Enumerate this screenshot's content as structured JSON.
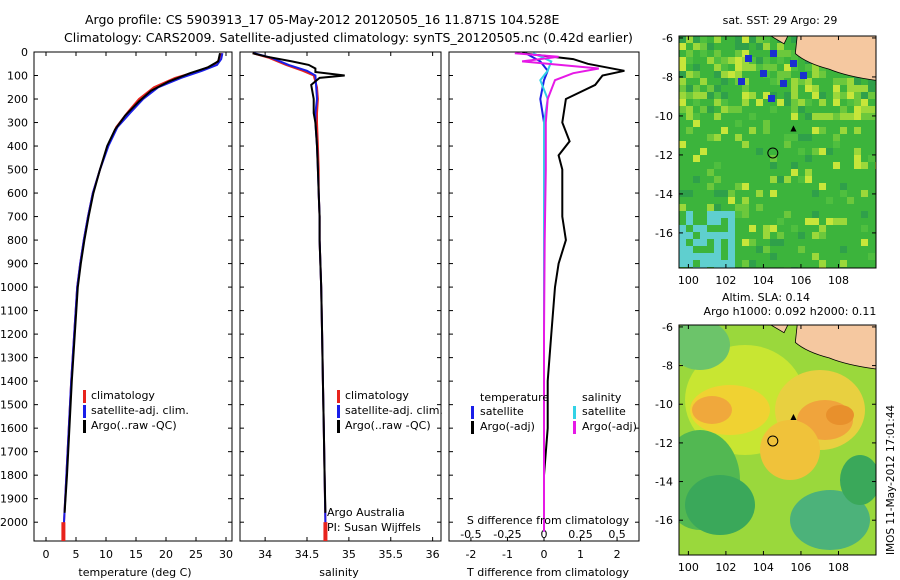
{
  "header": {
    "line1": "Argo profile: CS 5903913_17 05-May-2012 20120505_16 11.871S 104.528E",
    "line2": "Climatology: CARS2009. Satellite-adjusted climatology: synTS_20120505.nc (0.42d earlier)"
  },
  "side_label": "IMOS 11-May-2012 17:01:44",
  "chart_data": [
    {
      "id": "temperature",
      "type": "line",
      "xlabel": "temperature (deg C)",
      "ylabel": "",
      "xlim": [
        -2,
        31
      ],
      "ylim": [
        2080,
        0
      ],
      "xticks": [
        0,
        5,
        10,
        15,
        20,
        25,
        30
      ],
      "yticks": [
        0,
        100,
        200,
        300,
        400,
        500,
        600,
        700,
        800,
        900,
        1000,
        1100,
        1200,
        1300,
        1400,
        1500,
        1600,
        1700,
        1800,
        1900,
        2000
      ],
      "legend": [
        "climatology",
        "satellite-adj. clim.",
        "Argo(..raw -QC)"
      ],
      "series": [
        {
          "name": "climatology",
          "color": "#e8231c",
          "points": [
            [
              29.3,
              5
            ],
            [
              29.0,
              30
            ],
            [
              28.0,
              55
            ],
            [
              25.5,
              80
            ],
            [
              21.5,
              110
            ],
            [
              18.0,
              150
            ],
            [
              15.5,
              200
            ],
            [
              13.5,
              260
            ],
            [
              11.7,
              320
            ],
            [
              10.3,
              400
            ],
            [
              9.0,
              500
            ],
            [
              7.8,
              600
            ],
            [
              7.0,
              700
            ],
            [
              6.3,
              800
            ],
            [
              5.7,
              900
            ],
            [
              5.2,
              1000
            ],
            [
              4.7,
              1200
            ],
            [
              4.2,
              1400
            ],
            [
              3.8,
              1600
            ],
            [
              3.4,
              1800
            ],
            [
              3.0,
              2000
            ],
            [
              2.9,
              2040
            ]
          ]
        },
        {
          "name": "satellite-adj. clim.",
          "color": "#1a1ee8",
          "points": [
            [
              29.4,
              5
            ],
            [
              29.2,
              30
            ],
            [
              28.5,
              55
            ],
            [
              26.0,
              80
            ],
            [
              22.5,
              110
            ],
            [
              18.7,
              150
            ],
            [
              16.2,
              200
            ],
            [
              14.0,
              260
            ],
            [
              11.9,
              320
            ],
            [
              10.4,
              400
            ],
            [
              9.0,
              500
            ],
            [
              7.8,
              600
            ],
            [
              7.0,
              700
            ],
            [
              6.3,
              800
            ],
            [
              5.7,
              900
            ],
            [
              5.2,
              1000
            ],
            [
              4.7,
              1200
            ],
            [
              4.2,
              1400
            ],
            [
              3.8,
              1600
            ],
            [
              3.4,
              1800
            ],
            [
              3.0,
              2000
            ],
            [
              2.9,
              2040
            ]
          ]
        },
        {
          "name": "Argo(..raw -QC)",
          "color": "#000000",
          "points": [
            [
              29.0,
              5
            ],
            [
              28.7,
              40
            ],
            [
              27.0,
              65
            ],
            [
              24.0,
              90
            ],
            [
              20.5,
              125
            ],
            [
              17.5,
              165
            ],
            [
              15.5,
              210
            ],
            [
              13.2,
              270
            ],
            [
              11.5,
              330
            ],
            [
              10.2,
              400
            ],
            [
              9.0,
              500
            ],
            [
              7.9,
              600
            ],
            [
              7.1,
              700
            ],
            [
              6.4,
              800
            ],
            [
              5.8,
              900
            ],
            [
              5.3,
              1000
            ],
            [
              4.8,
              1200
            ],
            [
              4.3,
              1400
            ],
            [
              3.9,
              1600
            ],
            [
              3.5,
              1800
            ],
            [
              3.1,
              1960
            ]
          ]
        }
      ]
    },
    {
      "id": "salinity",
      "type": "line",
      "xlabel": "salinity",
      "ylabel": "",
      "xlim": [
        33.7,
        36.1
      ],
      "ylim": [
        2080,
        0
      ],
      "xticks": [
        34,
        34.5,
        35,
        35.5,
        36
      ],
      "xticklabels": [
        "34",
        "34.5",
        "35",
        "35.5",
        "36"
      ],
      "legend": [
        "climatology",
        "satellite-adj. clim.",
        "Argo(..raw -QC)"
      ],
      "notes": [
        "Argo Australia",
        "PI: Susan Wijffels"
      ],
      "series": [
        {
          "name": "climatology",
          "color": "#e8231c",
          "points": [
            [
              33.85,
              5
            ],
            [
              34.05,
              25
            ],
            [
              34.25,
              55
            ],
            [
              34.45,
              80
            ],
            [
              34.58,
              100
            ],
            [
              34.62,
              150
            ],
            [
              34.63,
              200
            ],
            [
              34.62,
              260
            ],
            [
              34.62,
              300
            ],
            [
              34.63,
              400
            ],
            [
              34.64,
              500
            ],
            [
              34.64,
              600
            ],
            [
              34.65,
              700
            ],
            [
              34.65,
              800
            ],
            [
              34.66,
              900
            ],
            [
              34.67,
              1000
            ],
            [
              34.68,
              1200
            ],
            [
              34.69,
              1400
            ],
            [
              34.7,
              1600
            ],
            [
              34.71,
              1800
            ],
            [
              34.72,
              2000
            ],
            [
              34.72,
              2040
            ]
          ]
        },
        {
          "name": "satellite-adj. clim.",
          "color": "#1a1ee8",
          "points": [
            [
              33.87,
              5
            ],
            [
              34.08,
              25
            ],
            [
              34.28,
              55
            ],
            [
              34.5,
              80
            ],
            [
              34.6,
              100
            ],
            [
              34.61,
              150
            ],
            [
              34.62,
              200
            ],
            [
              34.6,
              260
            ],
            [
              34.6,
              300
            ],
            [
              34.62,
              400
            ],
            [
              34.63,
              500
            ],
            [
              34.64,
              600
            ],
            [
              34.65,
              700
            ],
            [
              34.65,
              800
            ],
            [
              34.66,
              900
            ],
            [
              34.67,
              1000
            ],
            [
              34.68,
              1200
            ],
            [
              34.69,
              1400
            ],
            [
              34.7,
              1600
            ],
            [
              34.71,
              1800
            ],
            [
              34.72,
              2000
            ],
            [
              34.72,
              2040
            ]
          ]
        },
        {
          "name": "Argo(..raw -QC)",
          "color": "#000000",
          "points": [
            [
              33.85,
              5
            ],
            [
              34.02,
              20
            ],
            [
              34.32,
              40
            ],
            [
              34.52,
              55
            ],
            [
              34.6,
              70
            ],
            [
              34.6,
              85
            ],
            [
              34.95,
              100
            ],
            [
              34.65,
              110
            ],
            [
              34.55,
              140
            ],
            [
              34.58,
              200
            ],
            [
              34.58,
              260
            ],
            [
              34.6,
              300
            ],
            [
              34.62,
              400
            ],
            [
              34.63,
              500
            ],
            [
              34.64,
              600
            ],
            [
              34.65,
              700
            ],
            [
              34.65,
              800
            ],
            [
              34.66,
              900
            ],
            [
              34.67,
              1000
            ],
            [
              34.68,
              1200
            ],
            [
              34.69,
              1400
            ],
            [
              34.7,
              1600
            ],
            [
              34.71,
              1800
            ],
            [
              34.72,
              1960
            ]
          ]
        }
      ]
    },
    {
      "id": "difference",
      "type": "line",
      "xlabel": "T difference from climatology",
      "top_xlabel": "S difference from climatology",
      "xlim": [
        -2.6,
        2.6
      ],
      "ylim": [
        2080,
        0
      ],
      "xticks": [
        -2,
        -1,
        0,
        1,
        2
      ],
      "top_ticks": [
        "-0.5",
        "-0.25",
        "0",
        "0.25",
        "0.5"
      ],
      "legend_t": [
        "temperature",
        "satellite",
        "Argo(-adj)"
      ],
      "legend_s": [
        "salinity",
        "satellite",
        "Argo(-adj)"
      ],
      "series": [
        {
          "name": "temperature satellite",
          "color": "#1a1ee8",
          "points": [
            [
              -0.5,
              5
            ],
            [
              -0.1,
              40
            ],
            [
              0.1,
              80
            ],
            [
              0.0,
              120
            ],
            [
              -0.1,
              200
            ],
            [
              0.0,
              300
            ],
            [
              0.0,
              500
            ],
            [
              0.0,
              1000
            ],
            [
              0.0,
              2040
            ]
          ]
        },
        {
          "name": "temperature Argo(-adj)",
          "color": "#000000",
          "points": [
            [
              -0.6,
              5
            ],
            [
              0.8,
              30
            ],
            [
              1.2,
              50
            ],
            [
              2.2,
              80
            ],
            [
              1.6,
              100
            ],
            [
              1.4,
              140
            ],
            [
              0.6,
              200
            ],
            [
              0.5,
              300
            ],
            [
              0.7,
              380
            ],
            [
              0.4,
              440
            ],
            [
              0.5,
              500
            ],
            [
              0.5,
              600
            ],
            [
              0.5,
              700
            ],
            [
              0.6,
              800
            ],
            [
              0.4,
              900
            ],
            [
              0.3,
              1000
            ],
            [
              0.2,
              1200
            ],
            [
              0.1,
              1400
            ],
            [
              0.1,
              1600
            ],
            [
              0.0,
              1800
            ],
            [
              0.0,
              1960
            ]
          ]
        },
        {
          "name": "salinity satellite",
          "color": "#32d2e6",
          "points": [
            [
              -0.3,
              5
            ],
            [
              0.2,
              40
            ],
            [
              0.1,
              80
            ],
            [
              -0.1,
              120
            ],
            [
              0.1,
              200
            ],
            [
              0.0,
              300
            ],
            [
              0.0,
              600
            ],
            [
              0.0,
              1000
            ],
            [
              0.0,
              2040
            ]
          ]
        },
        {
          "name": "salinity Argo(-adj)",
          "color": "#e619e6",
          "points": [
            [
              -0.8,
              5
            ],
            [
              0.4,
              20
            ],
            [
              -0.6,
              40
            ],
            [
              1.5,
              70
            ],
            [
              0.8,
              90
            ],
            [
              0.3,
              120
            ],
            [
              0.1,
              200
            ],
            [
              0.05,
              300
            ],
            [
              0.05,
              500
            ],
            [
              0.02,
              800
            ],
            [
              0.0,
              1200
            ],
            [
              0.0,
              2040
            ]
          ]
        }
      ]
    },
    {
      "id": "sst-map",
      "type": "heatmap",
      "title": "sat. SST: 29  Argo: 29",
      "xlim": [
        99.5,
        110
      ],
      "ylim": [
        -17.8,
        -5.9
      ],
      "xticks": [
        100,
        102,
        104,
        106,
        108
      ],
      "yticks": [
        -6,
        -8,
        -10,
        -12,
        -14,
        -16
      ],
      "argo_position": [
        104.5,
        -11.9
      ],
      "marker_position": [
        105.6,
        -10.6
      ]
    },
    {
      "id": "sla-map",
      "type": "heatmap",
      "title": "Altim. SLA: 0.14",
      "subtitle": "Argo h1000: 0.092  h2000: 0.11",
      "xlim": [
        99.5,
        110
      ],
      "ylim": [
        -17.8,
        -5.9
      ],
      "xticks": [
        100,
        102,
        104,
        106,
        108
      ],
      "yticks": [
        -6,
        -8,
        -10,
        -12,
        -14,
        -16
      ],
      "argo_position": [
        104.5,
        -11.9
      ],
      "marker_position": [
        105.6,
        -10.6
      ]
    }
  ]
}
